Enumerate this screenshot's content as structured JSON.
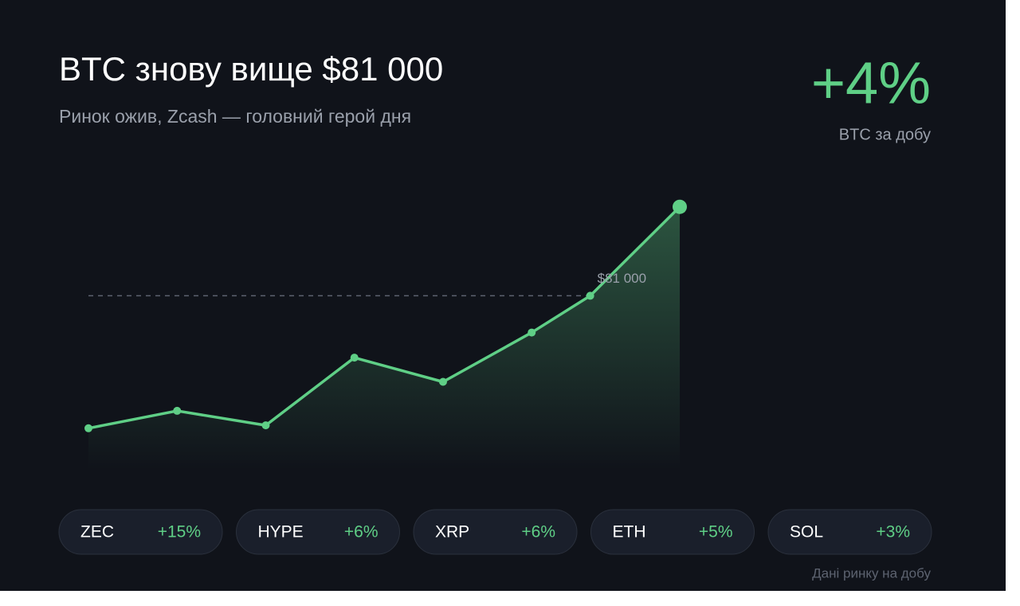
{
  "header": {
    "title": "BTC знову вище $81 000",
    "subtitle": "Ринок ожив, Zcash — головний герой дня"
  },
  "headline": {
    "value": "+4%",
    "caption": "BTC за добу"
  },
  "chart_data": {
    "type": "line",
    "x": [
      0,
      1,
      2,
      3,
      4,
      5,
      5.66,
      6.67
    ],
    "values": [
      79630,
      79810,
      79660,
      80360,
      80110,
      80620,
      81000,
      81920
    ],
    "color": "#5fcf86",
    "xlim": [
      0,
      6.67
    ],
    "ylim": [
      79200,
      82000
    ],
    "reference_line": {
      "value": 81000,
      "label": "$81 000"
    }
  },
  "tickers": [
    {
      "symbol": "ZEC",
      "change": "+15%"
    },
    {
      "symbol": "HYPE",
      "change": "+6%"
    },
    {
      "symbol": "XRP",
      "change": "+6%"
    },
    {
      "symbol": "ETH",
      "change": "+5%"
    },
    {
      "symbol": "SOL",
      "change": "+3%"
    }
  ],
  "footnote": "Дані ринку на добу"
}
